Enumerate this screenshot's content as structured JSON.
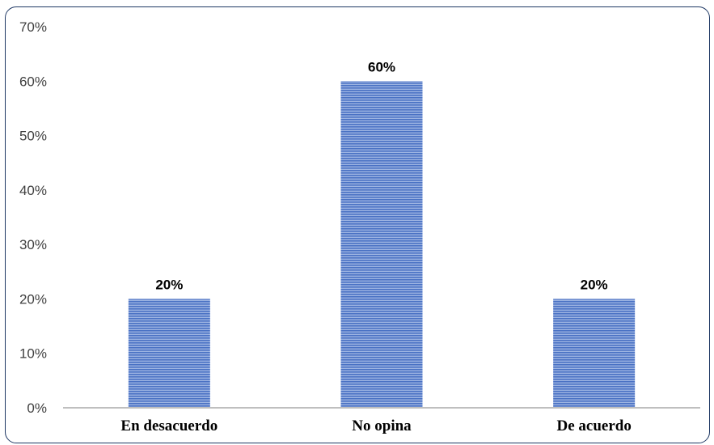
{
  "chart_data": {
    "type": "bar",
    "categories": [
      "En desacuerdo",
      "No opina",
      "De acuerdo"
    ],
    "values": [
      0.2,
      0.6,
      0.2
    ],
    "data_labels": [
      "20%",
      "60%",
      "20%"
    ],
    "y_ticks": [
      "0%",
      "10%",
      "20%",
      "30%",
      "40%",
      "50%",
      "60%",
      "70%"
    ],
    "ylim": [
      0,
      0.7
    ],
    "title": "",
    "xlabel": "",
    "ylabel": "",
    "grid": false,
    "legend": "none",
    "colors": {
      "bar_fill": "#4a72c4",
      "bar_stripe": "#8fa9dc",
      "axis": "#bfbfbf",
      "border": "#1f3864"
    }
  }
}
